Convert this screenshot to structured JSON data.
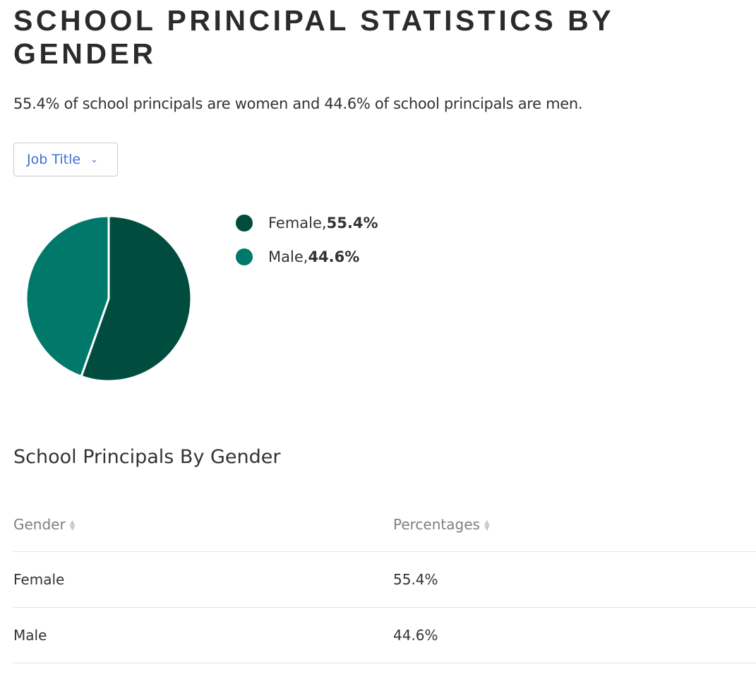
{
  "page_title": "SCHOOL PRINCIPAL STATISTICS BY GENDER",
  "summary": "55.4% of school principals are women and 44.6% of school principals are men.",
  "dropdown": {
    "label": "Job Title",
    "icon": "chevron-down-icon"
  },
  "chart_data": {
    "type": "pie",
    "categories": [
      "Female",
      "Male"
    ],
    "values": [
      55.4,
      44.6
    ],
    "colors": [
      "#004d40",
      "#00796b"
    ],
    "legend": [
      {
        "name": "Female",
        "sep": ", ",
        "value": "55.4%"
      },
      {
        "name": "Male",
        "sep": ", ",
        "value": "44.6%"
      }
    ],
    "legend_placement": "right"
  },
  "table": {
    "title": "School Principals By Gender",
    "headers": [
      "Gender",
      "Percentages"
    ],
    "rows": [
      [
        "Female",
        "55.4%"
      ],
      [
        "Male",
        "44.6%"
      ]
    ]
  }
}
